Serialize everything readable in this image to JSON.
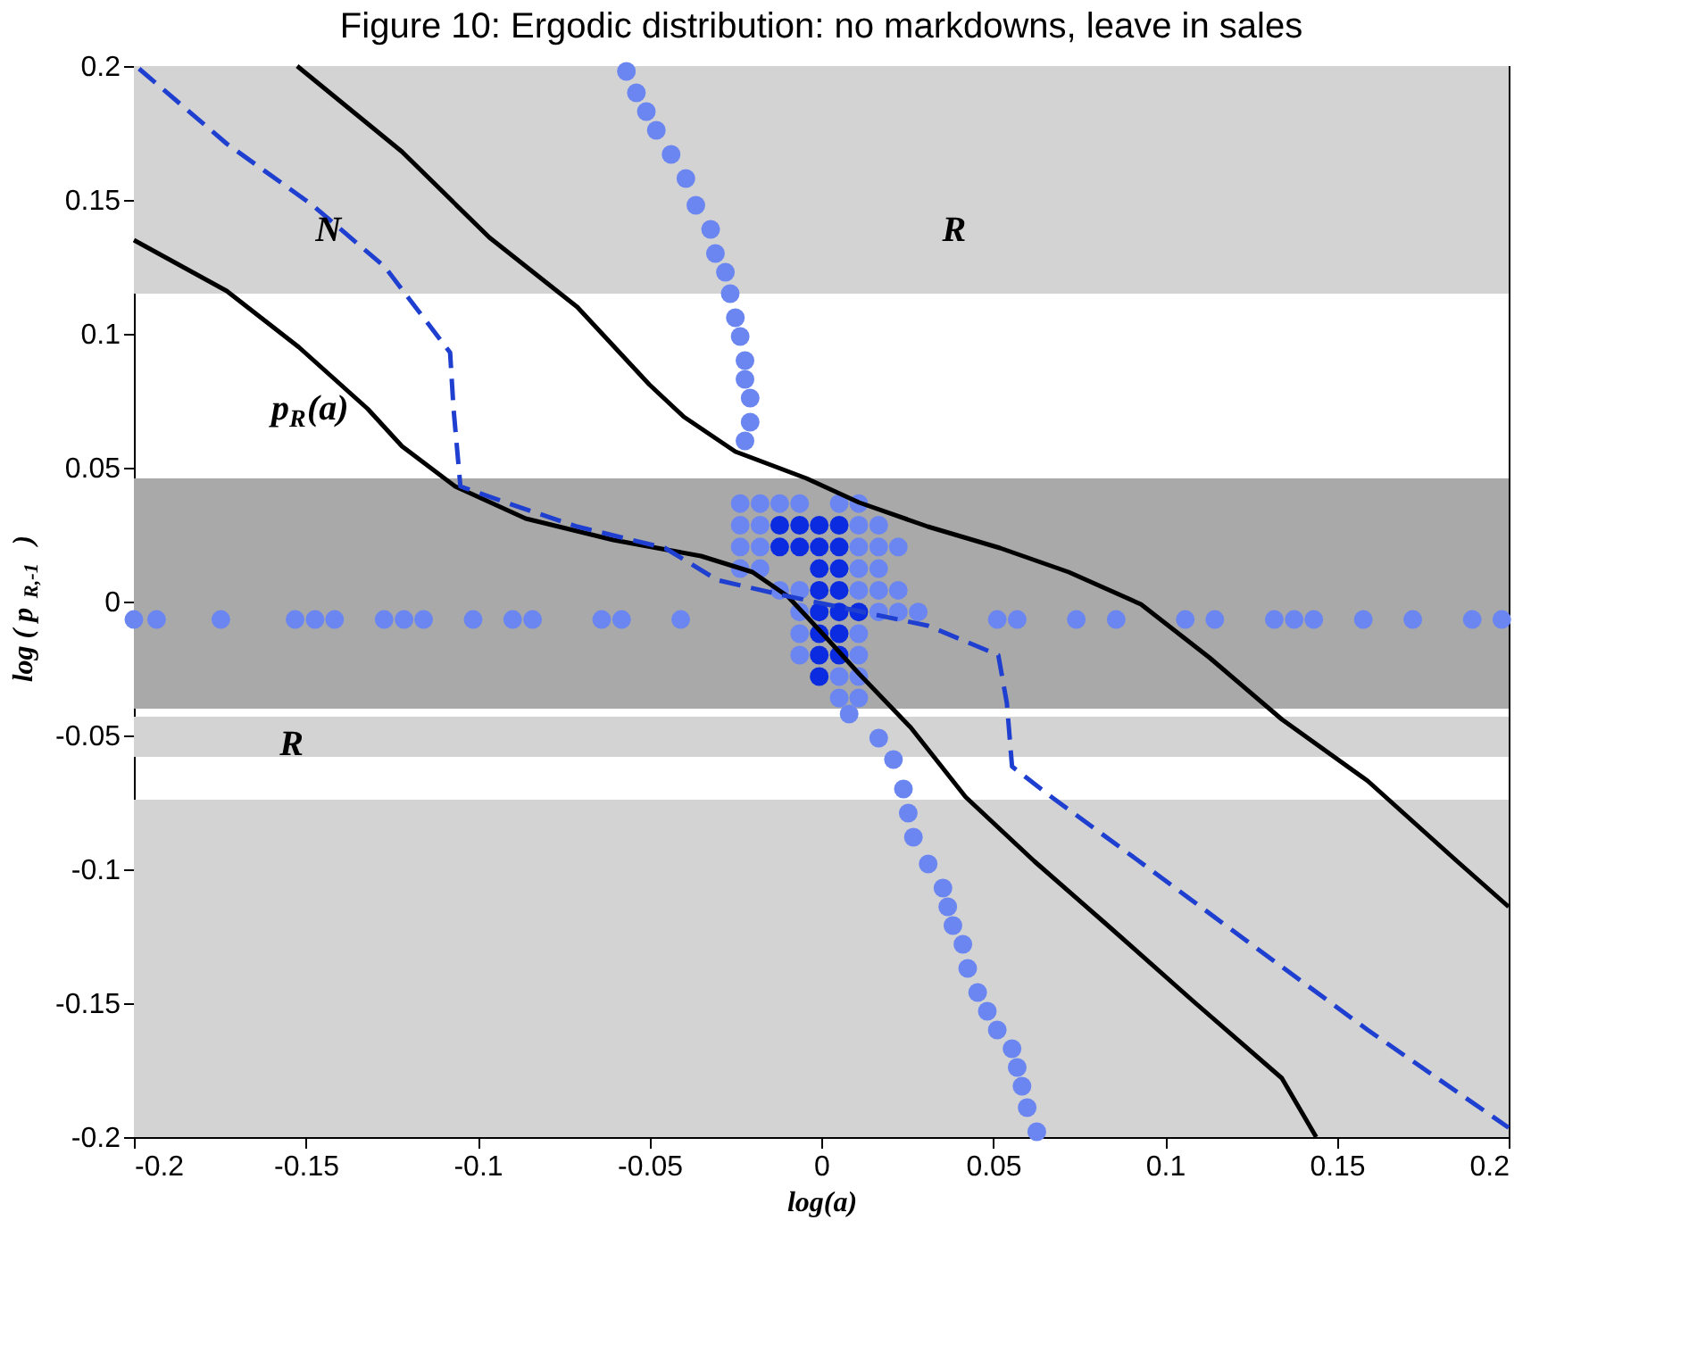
{
  "chart_data": {
    "type": "line",
    "title": "Figure 10: Ergodic distribution: no markdowns, leave in sales",
    "xlabel": "log(a)",
    "ylabel": "log ( p$_{R,-1}$ )",
    "xlim": [
      -0.2,
      0.2
    ],
    "ylim": [
      -0.2,
      0.2
    ],
    "xticks": [
      -0.2,
      -0.15,
      -0.1,
      -0.05,
      0,
      0.05,
      0.1,
      0.15,
      0.2
    ],
    "yticks": [
      -0.2,
      -0.15,
      -0.1,
      -0.05,
      0,
      0.05,
      0.1,
      0.15,
      0.2
    ],
    "grid": false,
    "bands": [
      {
        "axis": "y",
        "from": 0.115,
        "to": 0.2,
        "color": "#d3d3d3"
      },
      {
        "axis": "y",
        "from": -0.04,
        "to": 0.046,
        "color": "#a9a9a9"
      },
      {
        "axis": "y",
        "from": -0.058,
        "to": -0.043,
        "color": "#d3d3d3"
      },
      {
        "axis": "y",
        "from": -0.2,
        "to": -0.074,
        "color": "#d3d3d3"
      }
    ],
    "series": [
      {
        "color": "#000000",
        "line_style": "solid",
        "x": [
          -0.1525,
          -0.122,
          -0.0966,
          -0.071,
          -0.05,
          -0.04,
          -0.025,
          -0.0043,
          0.011,
          0.031,
          0.052,
          0.072,
          0.093,
          0.113,
          0.134,
          0.159,
          0.185,
          0.2
        ],
        "values": [
          0.2,
          0.168,
          0.136,
          0.11,
          0.081,
          0.069,
          0.056,
          0.046,
          0.037,
          0.028,
          0.02,
          0.011,
          -0.001,
          -0.021,
          -0.044,
          -0.067,
          -0.097,
          -0.114
        ]
      },
      {
        "color": "#000000",
        "line_style": "solid",
        "x": [
          -0.2,
          -0.173,
          -0.152,
          -0.132,
          -0.122,
          -0.1065,
          -0.086,
          -0.0605,
          -0.035,
          -0.02,
          -0.0098,
          0.0004,
          0.011,
          0.026,
          0.042,
          0.062,
          0.0825,
          0.108,
          0.134,
          0.144
        ],
        "values": [
          0.135,
          0.116,
          0.095,
          0.072,
          0.058,
          0.043,
          0.031,
          0.023,
          0.017,
          0.011,
          0.002,
          -0.012,
          -0.027,
          -0.047,
          -0.073,
          -0.097,
          -0.12,
          -0.149,
          -0.178,
          -0.2
        ]
      },
      {
        "color": "#1f3fd0",
        "line_style": "dashed",
        "x": [
          -0.1985,
          -0.173,
          -0.148,
          -0.127,
          -0.108,
          -0.107,
          -0.105,
          -0.0918,
          -0.071,
          -0.0455,
          -0.0302,
          -0.0098,
          0.0106,
          0.031,
          0.0515,
          0.054,
          0.0555,
          0.067,
          0.0925,
          0.123,
          0.159,
          0.2
        ],
        "values": [
          0.199,
          0.171,
          0.148,
          0.125,
          0.093,
          0.072,
          0.043,
          0.037,
          0.028,
          0.02,
          0.008,
          0.002,
          -0.0035,
          -0.009,
          -0.02,
          -0.038,
          -0.0616,
          -0.073,
          -0.097,
          -0.126,
          -0.16,
          -0.1965
        ]
      },
      {
        "type": "scatter",
        "color": "#6b86f0",
        "marker": "circle",
        "x": [
          -0.0567,
          -0.0538,
          -0.0509,
          -0.048,
          -0.0437,
          -0.0394,
          -0.0365,
          -0.0322,
          -0.0308,
          -0.0279,
          -0.0265,
          -0.025,
          -0.0236,
          -0.0222,
          -0.0222,
          -0.0207,
          -0.0207,
          -0.0222,
          0.0081,
          0.0167,
          0.021,
          0.0239,
          0.0253,
          0.0268,
          0.0311,
          0.0354,
          0.0368,
          0.0383,
          0.0412,
          0.0426,
          0.0455,
          0.0483,
          0.0512,
          0.0555,
          0.057,
          0.0584,
          0.0599,
          0.0627,
          -0.2,
          -0.1934,
          -0.1747,
          -0.1531,
          -0.1473,
          -0.1416,
          -0.1272,
          -0.1214,
          -0.1157,
          -0.1013,
          -0.0898,
          -0.084,
          -0.0639,
          -0.0581,
          -0.0409,
          0.0512,
          0.057,
          0.0742,
          0.0858,
          0.1059,
          0.1145,
          0.1318,
          0.1376,
          0.1433,
          0.1577,
          0.1721,
          0.1894,
          0.198,
          -0.0236,
          -0.0178,
          -0.0121,
          -0.0063,
          0.0052,
          0.0109,
          -0.0236,
          -0.0178,
          0.0109,
          0.0167,
          -0.0236,
          -0.0178,
          0.0109,
          0.0167,
          0.0224,
          -0.0236,
          -0.0178,
          0.0109,
          0.0167,
          -0.0121,
          -0.0063,
          0.0109,
          0.0167,
          0.0224,
          -0.0063,
          0.0167,
          0.0224,
          0.0282,
          -0.0063,
          0.0109,
          -0.0063,
          0.0109,
          0.0052,
          0.0109,
          0.0052,
          0.0109
        ],
        "values": [
          0.198,
          0.19,
          0.183,
          0.176,
          0.167,
          0.158,
          0.148,
          0.139,
          0.13,
          0.123,
          0.115,
          0.106,
          0.099,
          0.09,
          0.083,
          0.076,
          0.067,
          0.06,
          -0.042,
          -0.051,
          -0.059,
          -0.07,
          -0.079,
          -0.088,
          -0.098,
          -0.107,
          -0.114,
          -0.121,
          -0.128,
          -0.137,
          -0.146,
          -0.153,
          -0.16,
          -0.167,
          -0.174,
          -0.181,
          -0.189,
          -0.198,
          -0.0067,
          -0.0067,
          -0.0067,
          -0.0067,
          -0.0067,
          -0.0067,
          -0.0067,
          -0.0067,
          -0.0067,
          -0.0067,
          -0.0067,
          -0.0067,
          -0.0067,
          -0.0067,
          -0.0067,
          -0.0067,
          -0.0067,
          -0.0067,
          -0.0067,
          -0.0067,
          -0.0067,
          -0.0067,
          -0.0067,
          -0.0067,
          -0.0067,
          -0.0067,
          -0.0067,
          -0.0067,
          0.0366,
          0.0366,
          0.0366,
          0.0366,
          0.0366,
          0.0366,
          0.0285,
          0.0285,
          0.0285,
          0.0285,
          0.0204,
          0.0204,
          0.0204,
          0.0204,
          0.0204,
          0.0123,
          0.0123,
          0.0123,
          0.0123,
          0.0042,
          0.0042,
          0.0042,
          0.0042,
          0.0042,
          -0.0039,
          -0.0039,
          -0.0039,
          -0.0039,
          -0.012,
          -0.012,
          -0.02,
          -0.02,
          -0.028,
          -0.028,
          -0.036,
          -0.036
        ]
      },
      {
        "type": "scatter",
        "color": "#0a2be0",
        "marker": "circle",
        "x": [
          -0.0121,
          -0.0063,
          -0.0006,
          0.0052,
          -0.0121,
          -0.0063,
          -0.0006,
          0.0052,
          -0.0006,
          0.0052,
          -0.0006,
          0.0052,
          -0.0006,
          0.0052,
          0.0109,
          -0.0006,
          0.0052,
          -0.0006,
          0.0052,
          -0.0006
        ],
        "values": [
          0.0285,
          0.0285,
          0.0285,
          0.0285,
          0.0204,
          0.0204,
          0.0204,
          0.0204,
          0.0123,
          0.0123,
          0.0042,
          0.0042,
          -0.0039,
          -0.0039,
          -0.0039,
          -0.012,
          -0.012,
          -0.02,
          -0.02,
          -0.028
        ]
      }
    ],
    "annotations": [
      "N",
      "R",
      "R",
      "p$_{R}$(a)"
    ]
  }
}
